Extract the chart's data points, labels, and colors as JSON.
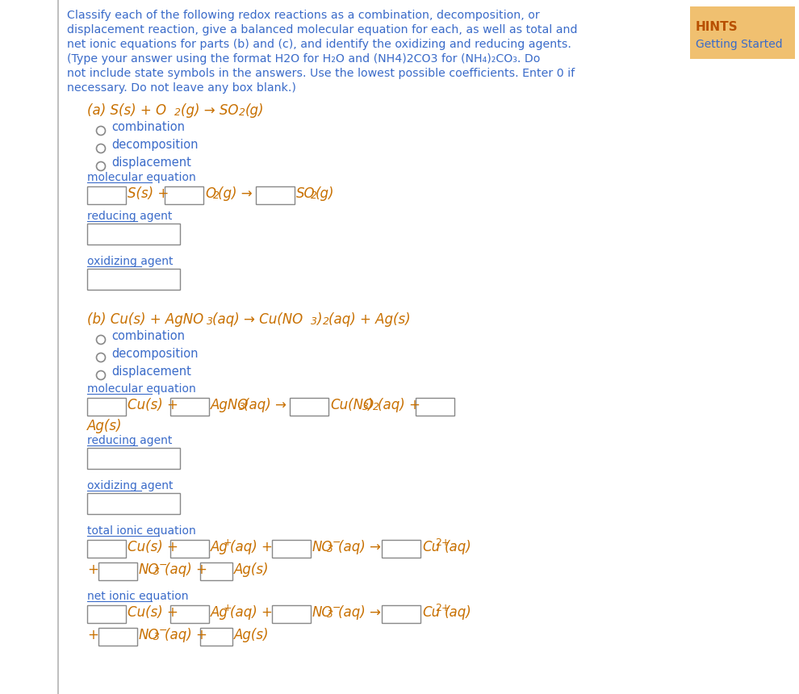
{
  "bg_color": "#ffffff",
  "text_blue": "#3a6bc9",
  "text_orange": "#c87000",
  "hints_bg": "#f0c070",
  "hints_title_color": "#b85000",
  "hints_link_color": "#3a6bc9",
  "box_edge": "#888888",
  "radio_edge": "#888888",
  "border_line": "#c0c0c0",
  "intro_lines": [
    "Classify each of the following redox reactions as a combination, decomposition, or",
    "displacement reaction, give a balanced molecular equation for each, as well as total and",
    "net ionic equations for parts (b) and (c), and identify the oxidizing and reducing agents.",
    "(Type your answer using the format H2O for H₂O and (NH4)2CO3 for (NH₄)₂CO₃. Do",
    "not include state symbols in the answers. Use the lowest possible coefficients. Enter 0 if",
    "necessary. Do not leave any box blank.)"
  ]
}
